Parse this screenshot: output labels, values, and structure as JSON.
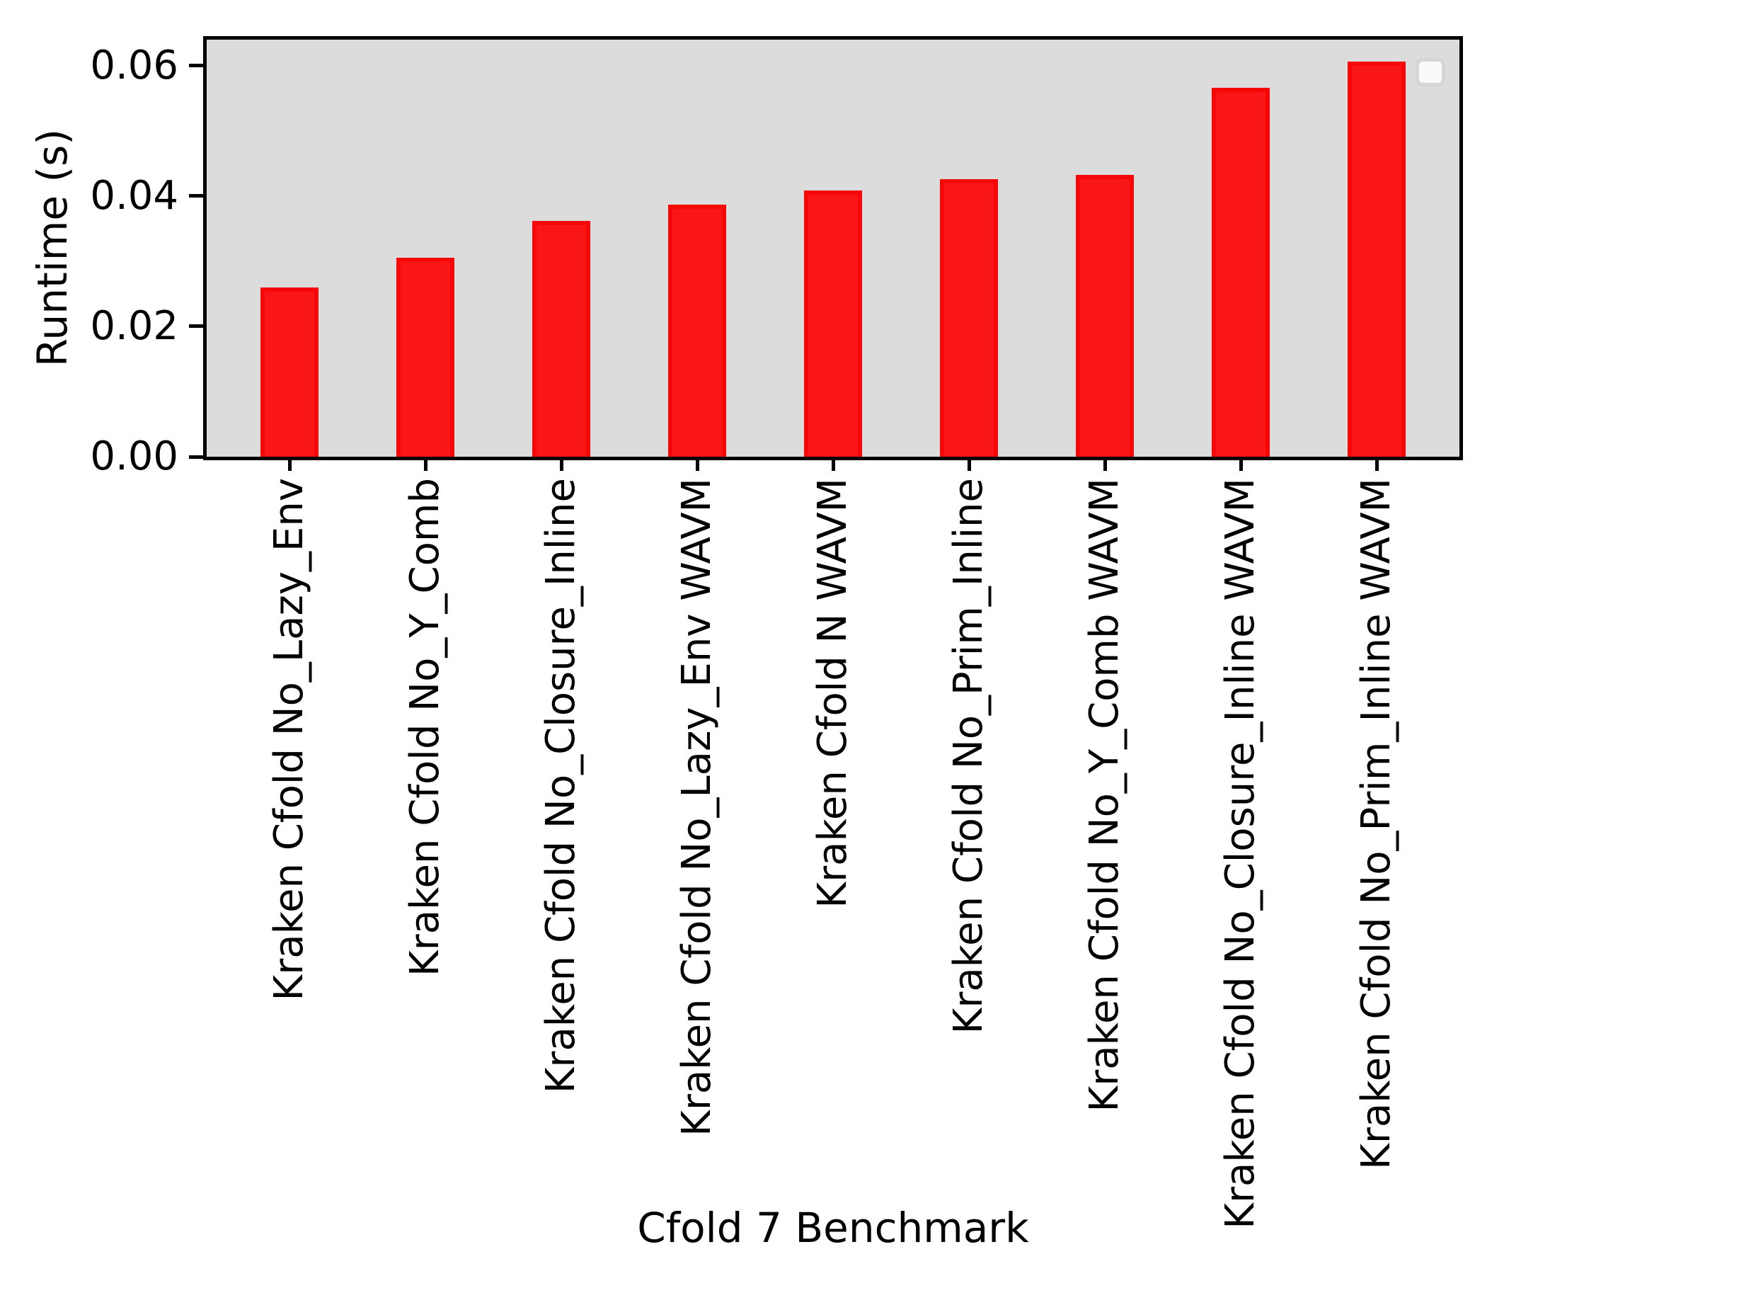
{
  "figure": {
    "background_color": "#ffffff",
    "plot_background_color": "#dcdcdc",
    "spine_color": "#000000",
    "bar_face_color": "#fa1616",
    "bar_edge_color": "#f70808",
    "legend": {
      "present": true,
      "entries": [],
      "position": "upper right"
    }
  },
  "chart_data": {
    "type": "bar",
    "title": "",
    "xlabel": "Cfold 7 Benchmark",
    "ylabel": "Runtime (s)",
    "categories": [
      "Kraken Cfold No_Lazy_Env",
      "Kraken Cfold No_Y_Comb",
      "Kraken Cfold No_Closure_Inline",
      "Kraken Cfold No_Lazy_Env WAVM",
      "Kraken Cfold N WAVM",
      "Kraken Cfold No_Prim_Inline",
      "Kraken Cfold No_Y_Comb WAVM",
      "Kraken Cfold No_Closure_Inline WAVM",
      "Kraken Cfold No_Prim_Inline WAVM"
    ],
    "values": [
      0.026,
      0.0305,
      0.0362,
      0.0387,
      0.0409,
      0.0426,
      0.0433,
      0.0566,
      0.0606
    ],
    "bar_color": "red",
    "ylim": [
      0,
      0.064
    ],
    "yticks": [
      0,
      0.02,
      0.04,
      0.06
    ],
    "ytick_labels": [
      "0.00",
      "0.02",
      "0.04",
      "0.06"
    ],
    "xtick_rotation_deg": 90,
    "grid": false,
    "legend_position": "upper right"
  }
}
